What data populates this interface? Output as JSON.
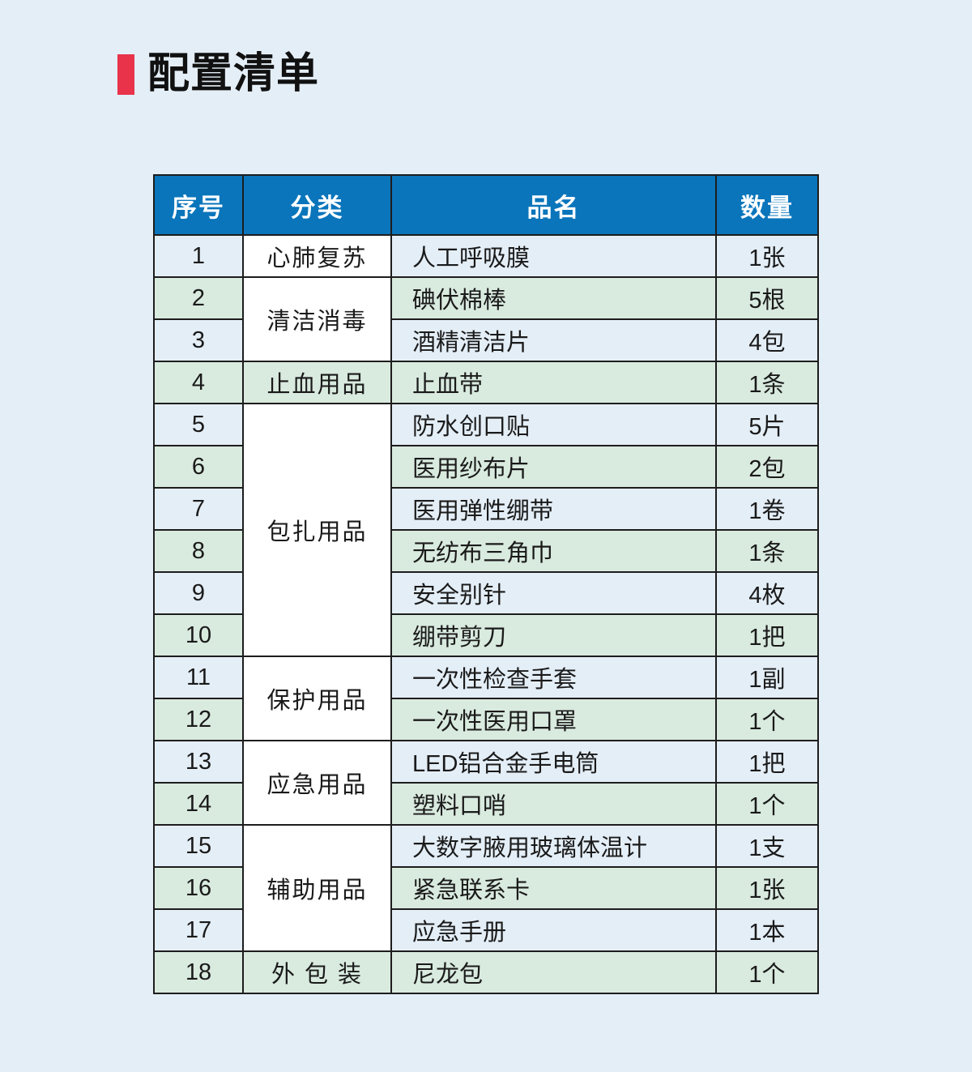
{
  "title": "配置清单",
  "colors": {
    "accent": "#e8334a",
    "header": "#0a75bb",
    "stripe": "#d9eadf",
    "background": "#e4eef7"
  },
  "table": {
    "headers": [
      "序号",
      "分类",
      "品名",
      "数量"
    ],
    "rows": [
      {
        "no": "1",
        "category": "心肺复苏",
        "span": 1,
        "name": "人工呼吸膜",
        "qty": "1张"
      },
      {
        "no": "2",
        "category": "清洁消毒",
        "span": 2,
        "name": "碘伏棉棒",
        "qty": "5根"
      },
      {
        "no": "3",
        "name": "酒精清洁片",
        "qty": "4包"
      },
      {
        "no": "4",
        "category": "止血用品",
        "span": 1,
        "name": "止血带",
        "qty": "1条"
      },
      {
        "no": "5",
        "category": "包扎用品",
        "span": 6,
        "name": "防水创口贴",
        "qty": "5片"
      },
      {
        "no": "6",
        "name": "医用纱布片",
        "qty": "2包"
      },
      {
        "no": "7",
        "name": "医用弹性绷带",
        "qty": "1卷"
      },
      {
        "no": "8",
        "name": "无纺布三角巾",
        "qty": "1条"
      },
      {
        "no": "9",
        "name": "安全别针",
        "qty": "4枚"
      },
      {
        "no": "10",
        "name": "绷带剪刀",
        "qty": "1把"
      },
      {
        "no": "11",
        "category": "保护用品",
        "span": 2,
        "name": "一次性检查手套",
        "qty": "1副"
      },
      {
        "no": "12",
        "name": "一次性医用口罩",
        "qty": "1个"
      },
      {
        "no": "13",
        "category": "应急用品",
        "span": 2,
        "name": "LED铝合金手电筒",
        "qty": "1把"
      },
      {
        "no": "14",
        "name": "塑料口哨",
        "qty": "1个"
      },
      {
        "no": "15",
        "category": "辅助用品",
        "span": 3,
        "name": "大数字腋用玻璃体温计",
        "qty": "1支"
      },
      {
        "no": "16",
        "name": "紧急联系卡",
        "qty": "1张"
      },
      {
        "no": "17",
        "name": "应急手册",
        "qty": "1本"
      },
      {
        "no": "18",
        "category": "外 包 装",
        "span": 1,
        "name": "尼龙包",
        "qty": "1个"
      }
    ]
  }
}
